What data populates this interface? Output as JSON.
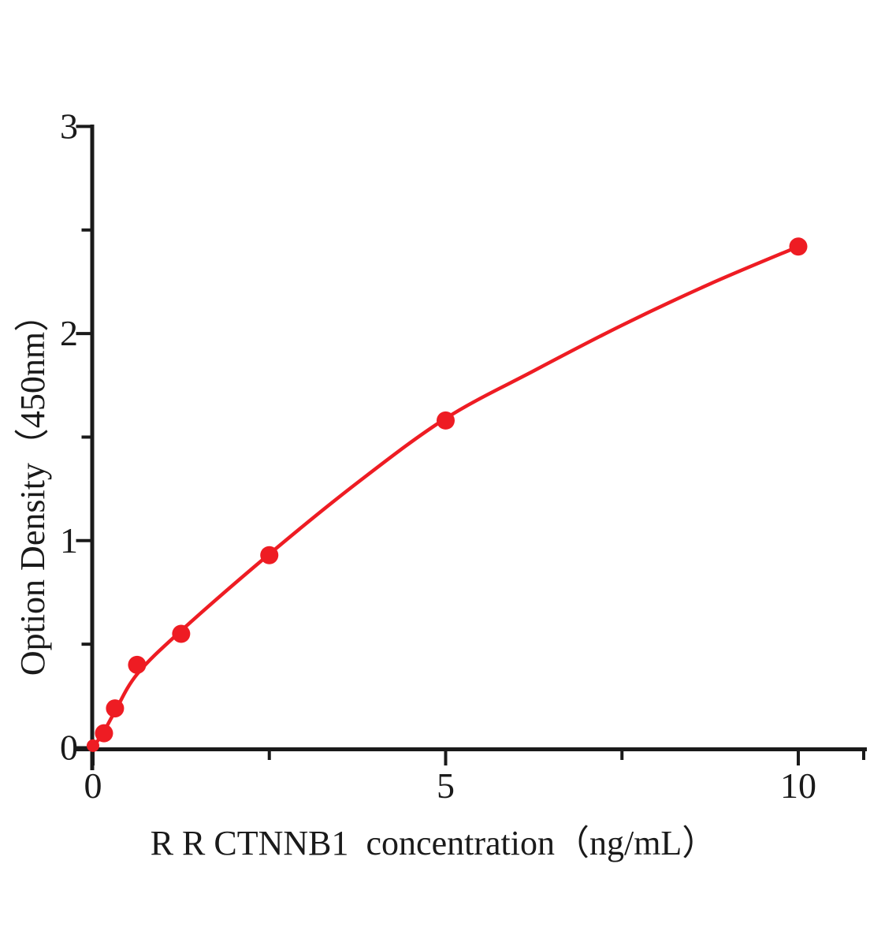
{
  "figure": {
    "background": "#ffffff"
  },
  "chart_data": {
    "type": "scatter",
    "title": "",
    "xlabel": "R R CTNNB1  concentration（ng/mL）",
    "ylabel": "Option Density（450nm）",
    "xlim": [
      0,
      11
    ],
    "ylim": [
      0,
      3
    ],
    "grid": false,
    "legend": false,
    "x": [
      0,
      0.156,
      0.312,
      0.625,
      1.25,
      2.5,
      5,
      10
    ],
    "y": [
      0.01,
      0.07,
      0.19,
      0.4,
      0.55,
      0.93,
      1.58,
      2.42
    ],
    "x_ticks": {
      "major": [
        0,
        5,
        10
      ],
      "minor": [
        2.5,
        7.5
      ]
    },
    "y_ticks": {
      "major": [
        0,
        1,
        2,
        3
      ],
      "minor": [
        0.5,
        1.5,
        2.5
      ]
    },
    "fit_curve": {
      "x": [
        0,
        0.156,
        0.312,
        0.625,
        1.25,
        2.5,
        3.75,
        5,
        6.25,
        7.5,
        8.75,
        10
      ],
      "y": [
        0.0,
        0.08,
        0.175,
        0.355,
        0.565,
        0.935,
        1.28,
        1.59,
        1.82,
        2.04,
        2.24,
        2.42
      ]
    },
    "colors": {
      "series": "#ee1c23",
      "axis": "#1a1a1a",
      "text": "#1a1a1a"
    }
  }
}
